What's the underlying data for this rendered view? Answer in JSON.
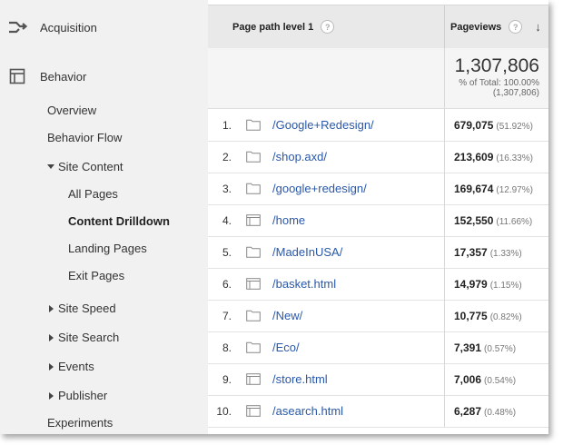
{
  "sidebar": {
    "acquisition_label": "Acquisition",
    "behavior_label": "Behavior",
    "items": [
      {
        "label": "Overview"
      },
      {
        "label": "Behavior Flow"
      },
      {
        "label": "Site Content"
      },
      {
        "label": "All Pages"
      },
      {
        "label": "Content Drilldown"
      },
      {
        "label": "Landing Pages"
      },
      {
        "label": "Exit Pages"
      },
      {
        "label": "Site Speed"
      },
      {
        "label": "Site Search"
      },
      {
        "label": "Events"
      },
      {
        "label": "Publisher"
      },
      {
        "label": "Experiments"
      }
    ]
  },
  "table": {
    "headers": {
      "dimension": "Page path level 1",
      "metric": "Pageviews",
      "help_glyph": "?"
    },
    "totals": {
      "value": "1,307,806",
      "pct_line": "% of Total: 100.00%",
      "abs_line": "(1,307,806)"
    },
    "rows": [
      {
        "num": "1.",
        "icon": "folder-icon",
        "path": "/Google+Redesign/",
        "value": "679,075",
        "pct": "(51.92%)"
      },
      {
        "num": "2.",
        "icon": "folder-icon",
        "path": "/shop.axd/",
        "value": "213,609",
        "pct": "(16.33%)"
      },
      {
        "num": "3.",
        "icon": "folder-icon",
        "path": "/google+redesign/",
        "value": "169,674",
        "pct": "(12.97%)"
      },
      {
        "num": "4.",
        "icon": "page-icon",
        "path": "/home",
        "value": "152,550",
        "pct": "(11.66%)"
      },
      {
        "num": "5.",
        "icon": "folder-icon",
        "path": "/MadeInUSA/",
        "value": "17,357",
        "pct": "(1.33%)"
      },
      {
        "num": "6.",
        "icon": "page-icon",
        "path": "/basket.html",
        "value": "14,979",
        "pct": "(1.15%)"
      },
      {
        "num": "7.",
        "icon": "folder-icon",
        "path": "/New/",
        "value": "10,775",
        "pct": "(0.82%)"
      },
      {
        "num": "8.",
        "icon": "folder-icon",
        "path": "/Eco/",
        "value": "7,391",
        "pct": "(0.57%)"
      },
      {
        "num": "9.",
        "icon": "page-icon",
        "path": "/store.html",
        "value": "7,006",
        "pct": "(0.54%)"
      },
      {
        "num": "10.",
        "icon": "page-icon",
        "path": "/asearch.html",
        "value": "6,287",
        "pct": "(0.48%)"
      }
    ]
  },
  "colors": {
    "link": "#2a58a8",
    "sidebar_bg": "#f1f1f1",
    "header_bg": "#e9e9e9"
  }
}
